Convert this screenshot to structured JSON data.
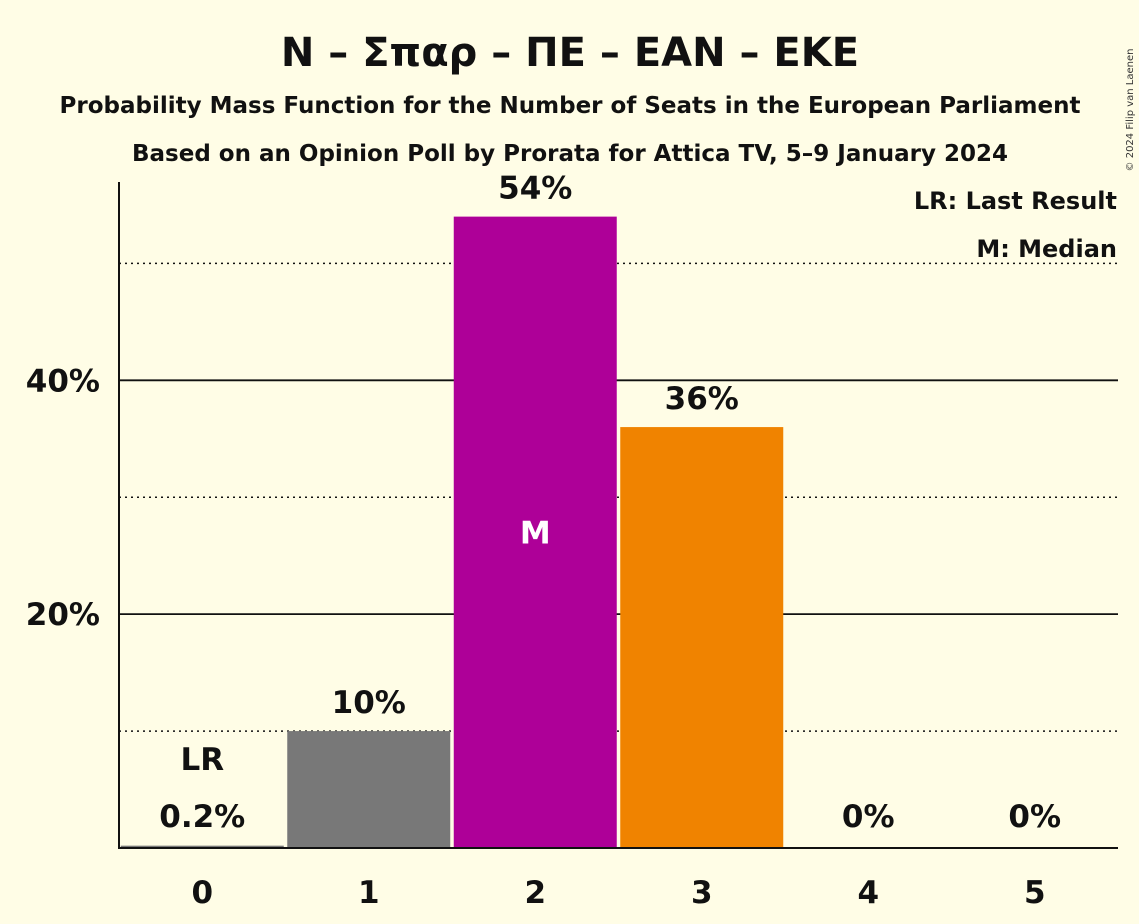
{
  "chart_data": {
    "type": "bar",
    "title": "N – Σπαρ – ΠΕ – ΕΑΝ – ΕΚΕ",
    "subtitle": "Probability Mass Function for the Number of Seats in the European Parliament",
    "subtitle2": "Based on an Opinion Poll by Prorata for Attica TV, 5–9 January 2024",
    "copyright": "© 2024 Filip van Laenen",
    "legend": [
      "LR: Last Result",
      "M: Median"
    ],
    "legend_position": "top-right",
    "categories": [
      "0",
      "1",
      "2",
      "3",
      "4",
      "5"
    ],
    "values": [
      0.2,
      10,
      54,
      36,
      0,
      0
    ],
    "value_labels": [
      "0.2%",
      "10%",
      "54%",
      "36%",
      "0%",
      "0%"
    ],
    "bar_colors": [
      "#787878",
      "#787878",
      "#AE0098",
      "#F08300",
      "#787878",
      "#787878"
    ],
    "ylim": [
      0,
      58.5
    ],
    "yticks": [
      20,
      40
    ],
    "ytick_labels": [
      "20%",
      "40%"
    ],
    "minor_gridlines": [
      10,
      30,
      50
    ],
    "grid": true,
    "last_result_index": 0,
    "last_result_label": "LR",
    "median_index": 2,
    "median_label": "M"
  }
}
